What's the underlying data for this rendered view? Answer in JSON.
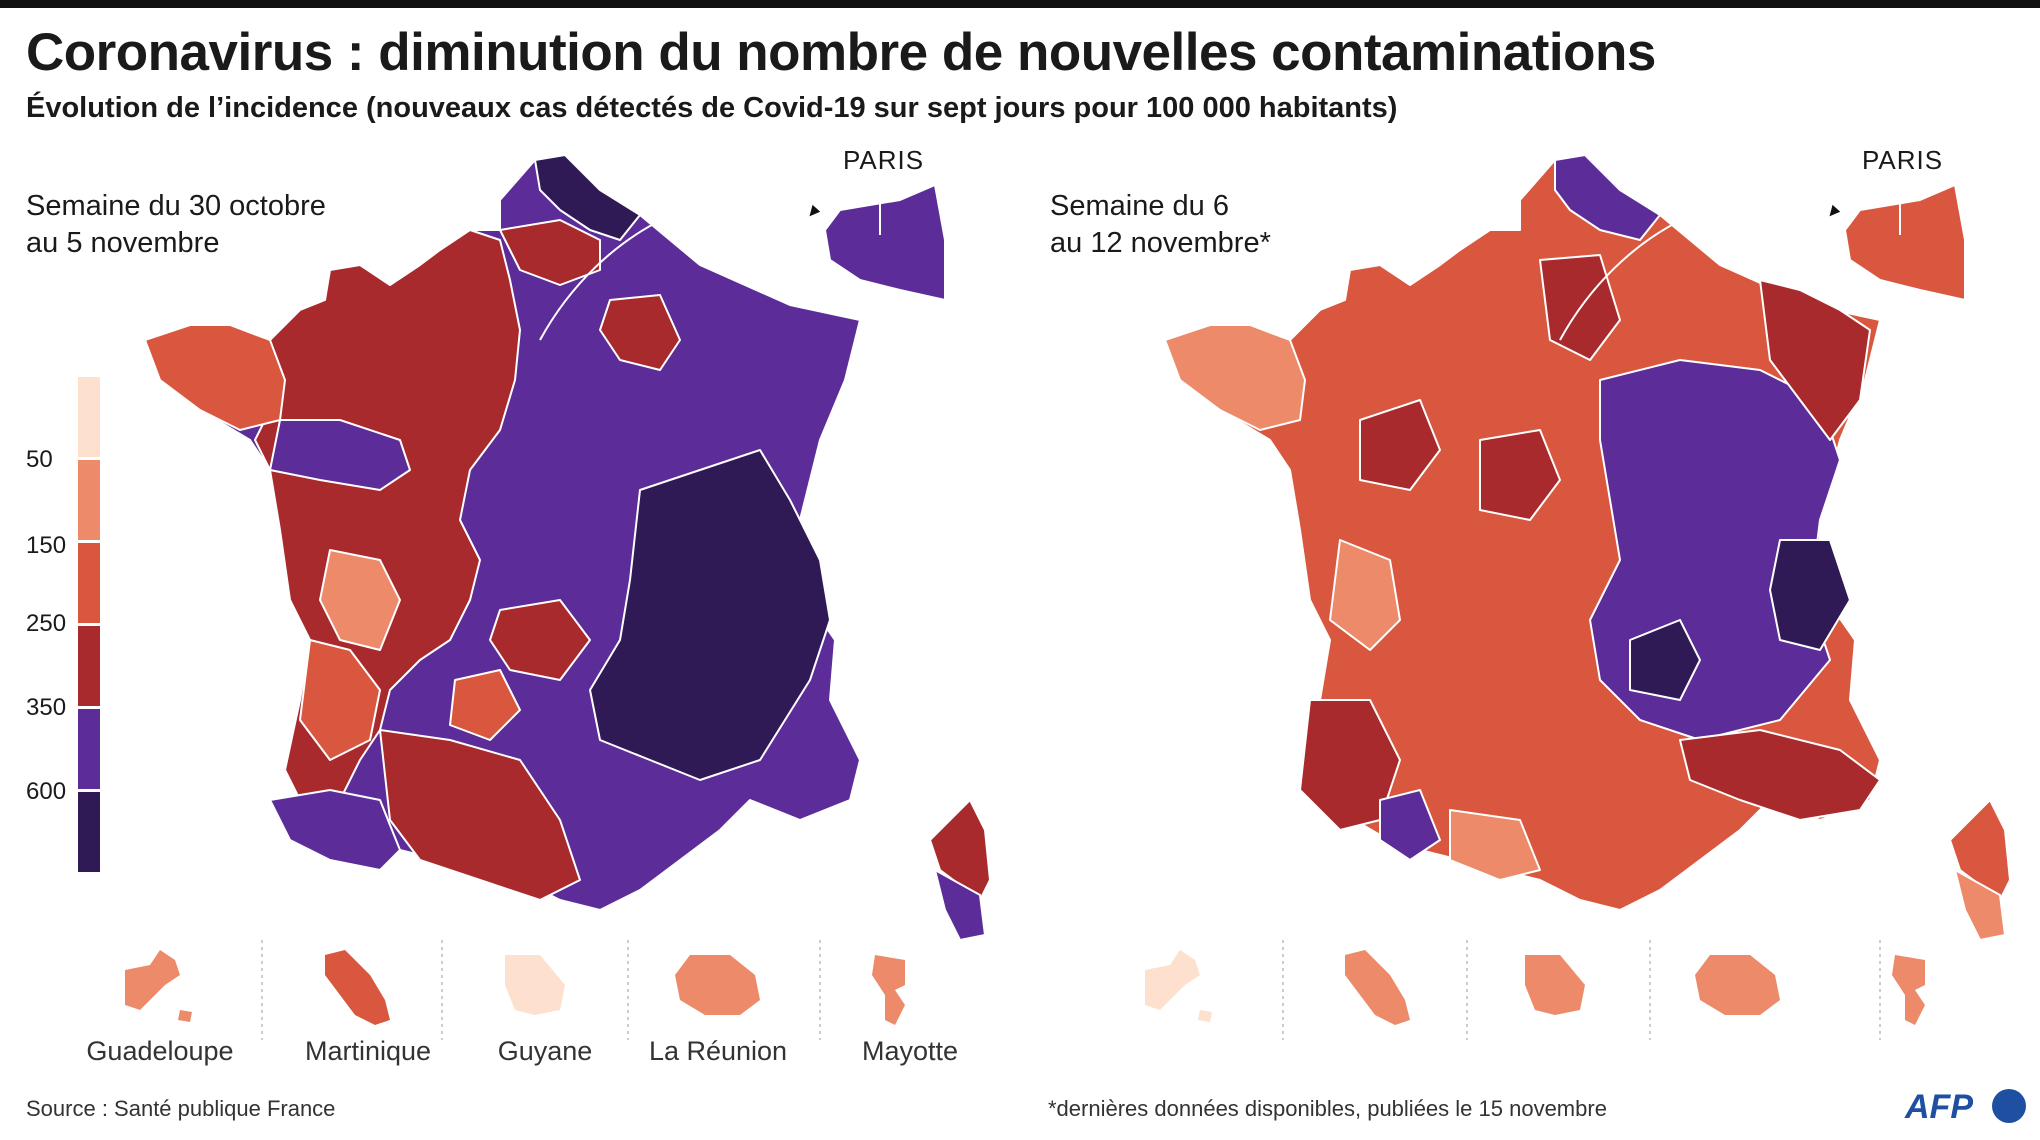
{
  "title": "Coronavirus : diminution du nombre de nouvelles contaminations",
  "subtitle": "Évolution de l’incidence (nouveaux cas détectés de Covid-19 sur sept jours pour 100 000 habitants)",
  "maps": [
    {
      "week_label": "Semaine du 30 octobre\n au 5 novembre",
      "paris_label": "PARIS"
    },
    {
      "week_label": "Semaine du 6\nau 12 novembre*",
      "paris_label": "PARIS"
    }
  ],
  "legend": {
    "thresholds": [
      "50",
      "150",
      "250",
      "350",
      "600"
    ],
    "colors": [
      "#fde0cd",
      "#ec8a6a",
      "#d9573e",
      "#a82a2c",
      "#5c2d99",
      "#2f1a55"
    ]
  },
  "overseas": {
    "labels": [
      "Guadeloupe",
      "Martinique",
      "Guyane",
      "La Réunion",
      "Mayotte"
    ],
    "map1_colors": [
      "#ec8a6a",
      "#d9573e",
      "#fde0cd",
      "#ec8a6a",
      "#ec8a6a"
    ],
    "map2_colors": [
      "#fde0cd",
      "#ec8a6a",
      "#ec8a6a",
      "#ec8a6a",
      "#ec8a6a"
    ]
  },
  "footer": {
    "source": "Source : Santé publique France",
    "note": "*dernières données disponibles, publiées le 15 novembre",
    "logo": "AFP"
  }
}
